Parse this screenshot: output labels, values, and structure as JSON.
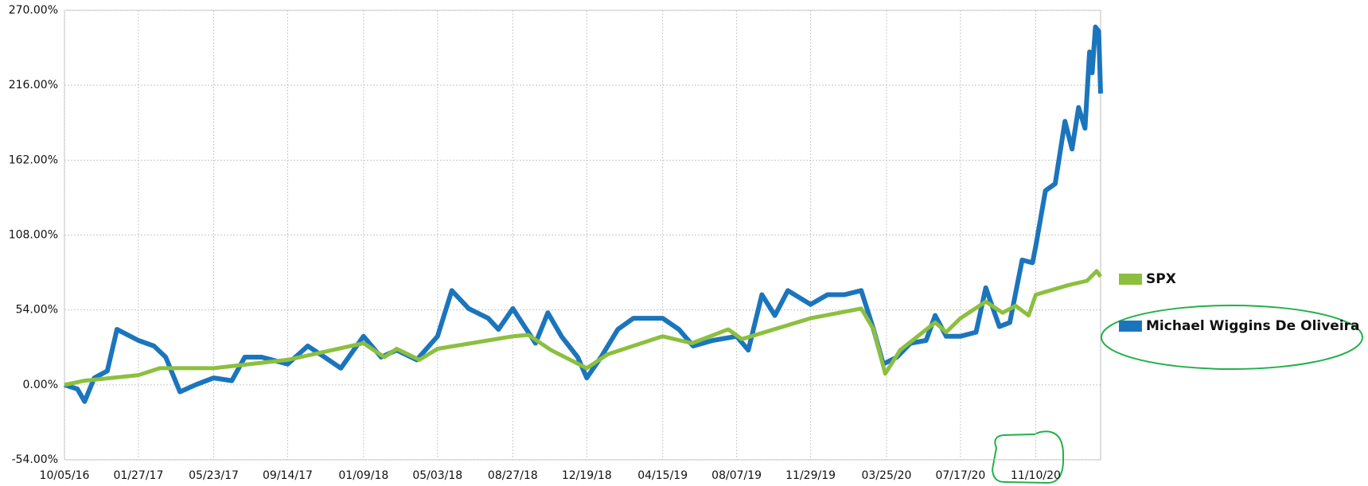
{
  "chart_data": {
    "type": "line",
    "grid": true,
    "legend": "right",
    "ylim": [
      -54,
      270
    ],
    "yticks": [
      {
        "value": -54,
        "label": "-54.00%"
      },
      {
        "value": 0,
        "label": "0.00%"
      },
      {
        "value": 54,
        "label": "54.00%"
      },
      {
        "value": 108,
        "label": "108.00%"
      },
      {
        "value": 162,
        "label": "162.00%"
      },
      {
        "value": 216,
        "label": "216.00%"
      },
      {
        "value": 270,
        "label": "270.00%"
      }
    ],
    "xlim": [
      "10/05/16",
      "02/18/21"
    ],
    "xticks": [
      "10/05/16",
      "01/27/17",
      "05/23/17",
      "09/14/17",
      "01/09/18",
      "05/03/18",
      "08/27/18",
      "12/19/18",
      "04/15/19",
      "08/07/19",
      "11/29/19",
      "03/25/20",
      "07/17/20",
      "11/10/20"
    ],
    "series": [
      {
        "name": "SPX",
        "color": "#8cbf3f",
        "x": [
          "10/05/16",
          "11/05/16",
          "01/27/17",
          "03/01/17",
          "05/23/17",
          "09/14/17",
          "01/09/18",
          "02/10/18",
          "03/01/18",
          "04/05/18",
          "05/03/18",
          "08/27/18",
          "09/20/18",
          "10/25/18",
          "12/19/18",
          "01/20/19",
          "04/15/19",
          "05/30/19",
          "07/25/19",
          "08/15/19",
          "11/29/19",
          "02/15/20",
          "03/05/20",
          "03/23/20",
          "04/15/20",
          "06/08/20",
          "06/25/20",
          "07/17/20",
          "08/25/20",
          "09/20/20",
          "10/10/20",
          "10/30/20",
          "11/10/20",
          "12/31/20",
          "01/28/21",
          "02/12/21",
          "02/18/21"
        ],
        "values": [
          0,
          3,
          7,
          12,
          12,
          18,
          30,
          20,
          26,
          18,
          26,
          35,
          36,
          25,
          12,
          22,
          35,
          30,
          40,
          33,
          48,
          55,
          40,
          8,
          25,
          45,
          38,
          48,
          60,
          52,
          57,
          50,
          65,
          72,
          75,
          82,
          78
        ]
      },
      {
        "name": "Michael Wiggins De Oliveira",
        "color": "#1b75bc",
        "x": [
          "10/05/16",
          "10/25/16",
          "11/05/16",
          "11/20/16",
          "12/10/16",
          "12/25/16",
          "01/27/17",
          "02/20/17",
          "03/10/17",
          "04/01/17",
          "04/25/17",
          "05/23/17",
          "06/20/17",
          "07/10/17",
          "08/05/17",
          "09/14/17",
          "10/15/17",
          "11/10/17",
          "12/05/17",
          "01/09/18",
          "02/05/18",
          "03/01/18",
          "04/01/18",
          "05/03/18",
          "05/25/18",
          "06/20/18",
          "07/20/18",
          "08/05/18",
          "08/27/18",
          "09/10/18",
          "10/01/18",
          "10/20/18",
          "11/10/18",
          "12/05/18",
          "12/19/18",
          "01/10/19",
          "02/05/19",
          "03/01/19",
          "04/15/19",
          "05/10/19",
          "06/01/19",
          "07/01/19",
          "08/07/19",
          "08/25/19",
          "09/15/19",
          "10/05/19",
          "10/25/19",
          "11/29/19",
          "12/25/19",
          "01/20/20",
          "02/15/20",
          "03/05/20",
          "03/20/20",
          "04/10/20",
          "05/01/20",
          "05/25/20",
          "06/08/20",
          "06/25/20",
          "07/17/20",
          "08/10/20",
          "08/25/20",
          "09/15/20",
          "10/01/20",
          "10/20/20",
          "11/05/20",
          "11/10/20",
          "11/25/20",
          "12/10/20",
          "12/25/20",
          "01/05/21",
          "01/15/21",
          "01/25/21",
          "02/01/21",
          "02/05/21",
          "02/10/21",
          "02/15/21",
          "02/18/21"
        ],
        "values": [
          0,
          -3,
          -12,
          5,
          10,
          40,
          32,
          28,
          20,
          -5,
          0,
          5,
          3,
          20,
          20,
          15,
          28,
          20,
          12,
          35,
          20,
          25,
          18,
          35,
          68,
          55,
          48,
          40,
          55,
          45,
          30,
          52,
          35,
          20,
          5,
          20,
          40,
          48,
          48,
          40,
          28,
          32,
          35,
          25,
          65,
          50,
          68,
          58,
          65,
          65,
          68,
          40,
          15,
          20,
          30,
          32,
          50,
          35,
          35,
          38,
          70,
          42,
          45,
          90,
          88,
          100,
          140,
          145,
          190,
          170,
          200,
          185,
          240,
          225,
          258,
          255,
          210
        ]
      }
    ]
  }
}
